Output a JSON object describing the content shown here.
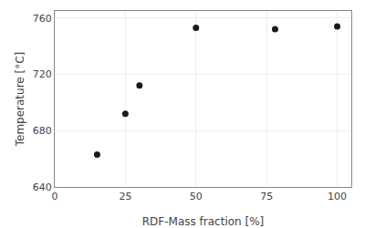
{
  "chart_data": {
    "type": "scatter",
    "x": [
      15,
      25,
      30,
      50,
      78,
      100
    ],
    "values": [
      663,
      692,
      712,
      753,
      752,
      754
    ],
    "xlabel": "RDF-Mass fraction [%]",
    "ylabel": "Temperature [°C]",
    "xlim": [
      0,
      105
    ],
    "ylim": [
      640,
      765
    ],
    "xticks": [
      0,
      25,
      50,
      75,
      100
    ],
    "yticks": [
      640,
      680,
      720,
      760
    ],
    "color": "#1a1a1a",
    "grid": true
  }
}
